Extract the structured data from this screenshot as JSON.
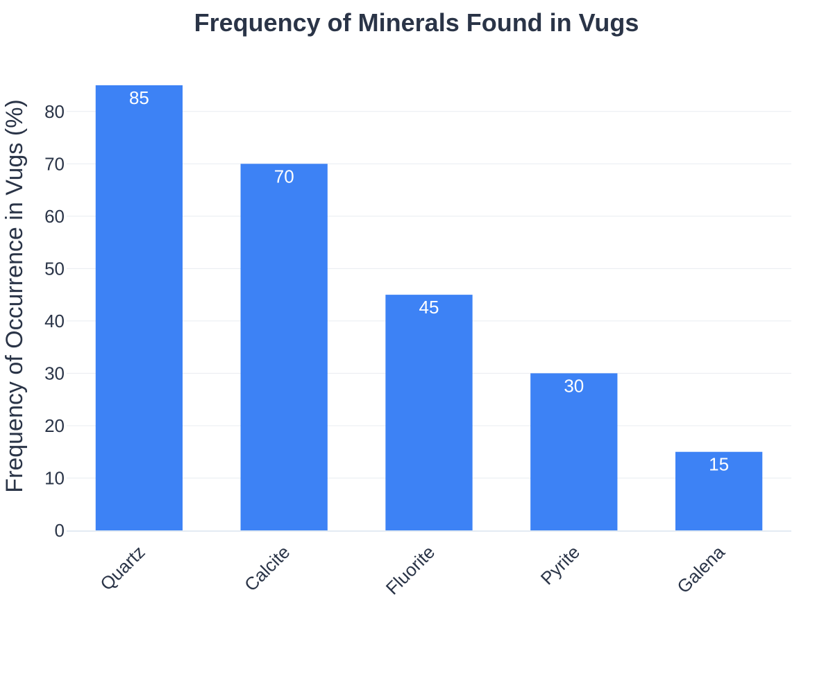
{
  "chart_data": {
    "type": "bar",
    "title": "Frequency of Minerals Found in Vugs",
    "xlabel": "",
    "ylabel": "Frequency of Occurrence in Vugs (%)",
    "categories": [
      "Quartz",
      "Calcite",
      "Fluorite",
      "Pyrite",
      "Galena"
    ],
    "values": [
      85,
      70,
      45,
      30,
      15
    ],
    "data_labels": [
      "85",
      "70",
      "45",
      "30",
      "15"
    ],
    "ylim": [
      0,
      89.5
    ],
    "yticks": [
      0,
      10,
      20,
      30,
      40,
      50,
      60,
      70,
      80
    ],
    "grid": true,
    "legend": "none",
    "colors": {
      "bar": "#3d82f5",
      "text": "#2a3447",
      "grid": "#e8ecf1"
    }
  }
}
